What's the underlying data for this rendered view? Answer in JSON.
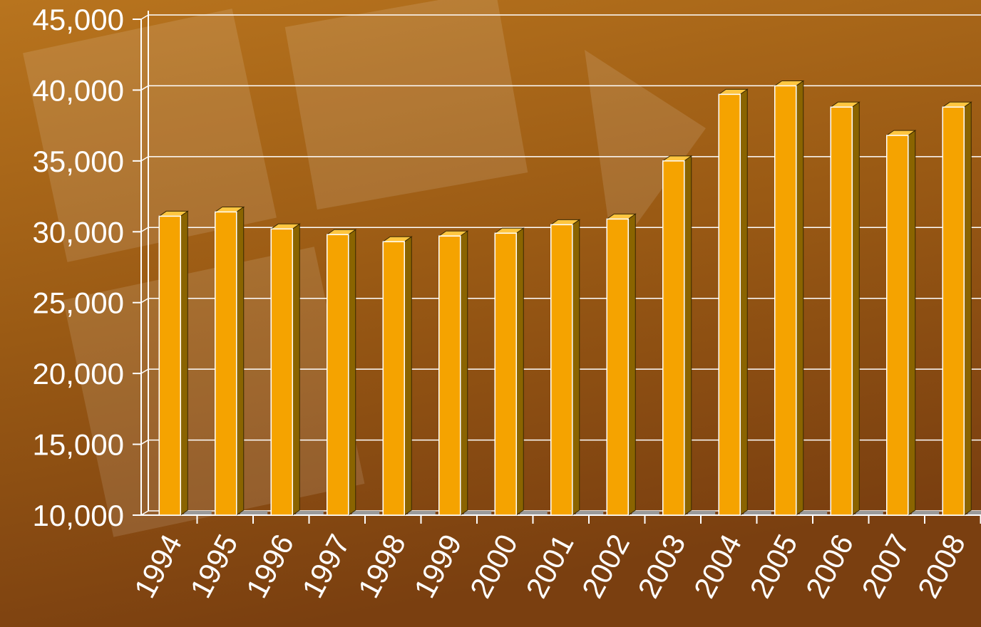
{
  "chart_data": {
    "type": "bar3d",
    "categories": [
      "1994",
      "1995",
      "1996",
      "1997",
      "1998",
      "1999",
      "2000",
      "2001",
      "2002",
      "2003",
      "2004",
      "2005",
      "2006",
      "2007",
      "2008"
    ],
    "values": [
      31100,
      31400,
      30200,
      29800,
      29300,
      29700,
      29900,
      30500,
      30900,
      35000,
      39700,
      40300,
      38800,
      36800,
      38800
    ],
    "color": "#f5a300",
    "ylim": [
      10000,
      45000
    ],
    "yticks": [
      {
        "value": 10000,
        "label": "10,000"
      },
      {
        "value": 15000,
        "label": "15,000"
      },
      {
        "value": 20000,
        "label": "20,000"
      },
      {
        "value": 25000,
        "label": "25,000"
      },
      {
        "value": 30000,
        "label": "30,000"
      },
      {
        "value": 35000,
        "label": "35,000"
      },
      {
        "value": 40000,
        "label": "40,000"
      },
      {
        "value": 45000,
        "label": "45,000"
      }
    ],
    "grid": true
  }
}
